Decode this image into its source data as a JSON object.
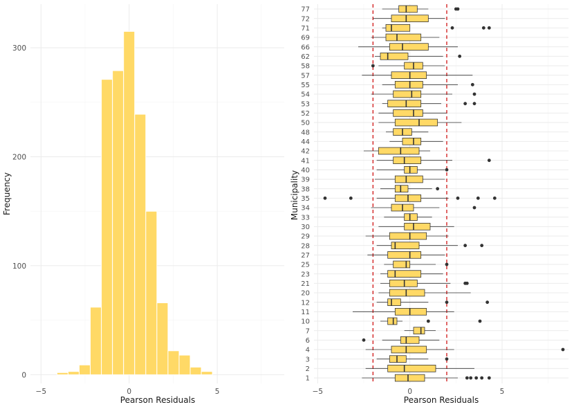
{
  "chart_data": [
    {
      "type": "bar",
      "subtype": "histogram",
      "xlabel": "Pearson Residuals",
      "ylabel": "Frequency",
      "xlim": [
        -5.6,
        8.8
      ],
      "ylim": [
        -8,
        340
      ],
      "x_ticks": [
        -5,
        0,
        5
      ],
      "y_ticks": [
        0,
        100,
        200,
        300
      ],
      "bin_width": 0.63,
      "bins": [
        {
          "x": -4.41,
          "count": 0
        },
        {
          "x": -3.78,
          "count": 2
        },
        {
          "x": -3.15,
          "count": 3
        },
        {
          "x": -2.52,
          "count": 9
        },
        {
          "x": -1.89,
          "count": 62
        },
        {
          "x": -1.26,
          "count": 271
        },
        {
          "x": -0.63,
          "count": 279
        },
        {
          "x": 0.0,
          "count": 315
        },
        {
          "x": 0.63,
          "count": 239
        },
        {
          "x": 1.26,
          "count": 150
        },
        {
          "x": 1.89,
          "count": 66
        },
        {
          "x": 2.52,
          "count": 22
        },
        {
          "x": 3.15,
          "count": 18
        },
        {
          "x": 3.78,
          "count": 7
        },
        {
          "x": 4.41,
          "count": 3
        }
      ],
      "grid": true
    },
    {
      "type": "box",
      "xlabel": "Pearson Residuals",
      "ylabel": "Municipality",
      "xlim": [
        -5.2,
        8.6
      ],
      "x_ticks": [
        -5,
        0,
        5
      ],
      "reference_lines": [
        -2,
        2
      ],
      "grid": true,
      "categories": [
        "1",
        "2",
        "3",
        "4",
        "6",
        "7",
        "10",
        "11",
        "12",
        "20",
        "21",
        "23",
        "25",
        "27",
        "28",
        "29",
        "30",
        "33",
        "34",
        "35",
        "38",
        "39",
        "40",
        "41",
        "42",
        "44",
        "48",
        "50",
        "52",
        "53",
        "54",
        "55",
        "57",
        "58",
        "62",
        "66",
        "69",
        "71",
        "72",
        "77"
      ],
      "boxes": [
        {
          "min": -2.6,
          "q1": -0.8,
          "median": -0.1,
          "q3": 0.8,
          "max": 2.6,
          "outliers": [
            3.1,
            3.3,
            3.6,
            3.9,
            4.3
          ]
        },
        {
          "min": -2.4,
          "q1": -1.2,
          "median": -0.3,
          "q3": 1.4,
          "max": 3.5,
          "outliers": []
        },
        {
          "min": -1.8,
          "q1": -1.1,
          "median": -0.7,
          "q3": -0.2,
          "max": 1.0,
          "outliers": [
            2.0
          ]
        },
        {
          "min": -2.4,
          "q1": -1.0,
          "median": -0.2,
          "q3": 0.9,
          "max": 2.4,
          "outliers": [
            8.3
          ]
        },
        {
          "min": -1.5,
          "q1": -0.5,
          "median": -0.2,
          "q3": 0.5,
          "max": 1.6,
          "outliers": [
            -2.5
          ]
        },
        {
          "min": -0.3,
          "q1": 0.2,
          "median": 0.6,
          "q3": 0.8,
          "max": 1.4,
          "outliers": []
        },
        {
          "min": -1.6,
          "q1": -1.2,
          "median": -0.9,
          "q3": -0.7,
          "max": -0.4,
          "outliers": [
            1.0,
            3.8
          ]
        },
        {
          "min": -3.1,
          "q1": -0.8,
          "median": 0.0,
          "q3": 0.9,
          "max": 2.4,
          "outliers": []
        },
        {
          "min": -1.8,
          "q1": -1.2,
          "median": -1.0,
          "q3": -0.5,
          "max": 1.0,
          "outliers": [
            2.0,
            4.2
          ]
        },
        {
          "min": -1.7,
          "q1": -1.1,
          "median": -0.2,
          "q3": 0.8,
          "max": 3.3,
          "outliers": []
        },
        {
          "min": -1.6,
          "q1": -1.1,
          "median": -0.3,
          "q3": 0.4,
          "max": 2.2,
          "outliers": [
            3.0,
            3.1
          ]
        },
        {
          "min": -1.6,
          "q1": -1.2,
          "median": -0.8,
          "q3": 0.6,
          "max": 1.8,
          "outliers": []
        },
        {
          "min": -1.4,
          "q1": -0.9,
          "median": -0.2,
          "q3": 0.0,
          "max": 1.4,
          "outliers": [
            2.0
          ]
        },
        {
          "min": -2.3,
          "q1": -1.2,
          "median": 0.0,
          "q3": 0.6,
          "max": 1.9,
          "outliers": []
        },
        {
          "min": -1.8,
          "q1": -1.0,
          "median": -0.8,
          "q3": 0.5,
          "max": 2.6,
          "outliers": [
            3.0,
            3.9
          ]
        },
        {
          "min": -2.4,
          "q1": -1.1,
          "median": 0.0,
          "q3": 0.9,
          "max": 2.1,
          "outliers": []
        },
        {
          "min": -1.7,
          "q1": -0.3,
          "median": 0.2,
          "q3": 1.1,
          "max": 2.4,
          "outliers": []
        },
        {
          "min": -1.4,
          "q1": -0.3,
          "median": 0.0,
          "q3": 0.4,
          "max": 1.2,
          "outliers": []
        },
        {
          "min": -2.1,
          "q1": -1.0,
          "median": -0.4,
          "q3": 0.2,
          "max": 1.6,
          "outliers": [
            3.5
          ]
        },
        {
          "min": -1.8,
          "q1": -0.8,
          "median": -0.1,
          "q3": 0.6,
          "max": 2.1,
          "outliers": [
            -4.6,
            -3.2,
            2.6,
            3.7,
            4.6
          ]
        },
        {
          "min": -1.6,
          "q1": -0.8,
          "median": -0.5,
          "q3": -0.1,
          "max": 1.2,
          "outliers": [
            1.5
          ]
        },
        {
          "min": -1.9,
          "q1": -0.8,
          "median": -0.2,
          "q3": 0.7,
          "max": 1.9,
          "outliers": []
        },
        {
          "min": -1.8,
          "q1": -0.3,
          "median": 0.0,
          "q3": 0.4,
          "max": 1.9,
          "outliers": [
            2.0
          ]
        },
        {
          "min": -1.8,
          "q1": -0.9,
          "median": -0.3,
          "q3": 0.6,
          "max": 2.3,
          "outliers": [
            4.3
          ]
        },
        {
          "min": -2.5,
          "q1": -1.7,
          "median": -0.5,
          "q3": 0.5,
          "max": 1.1,
          "outliers": []
        },
        {
          "min": -1.1,
          "q1": -0.4,
          "median": 0.2,
          "q3": 0.6,
          "max": 1.8,
          "outliers": []
        },
        {
          "min": -1.3,
          "q1": -0.9,
          "median": -0.4,
          "q3": 0.1,
          "max": 1.0,
          "outliers": []
        },
        {
          "min": -1.7,
          "q1": -0.8,
          "median": 0.5,
          "q3": 1.5,
          "max": 2.8,
          "outliers": []
        },
        {
          "min": -1.7,
          "q1": -0.9,
          "median": 0.2,
          "q3": 0.7,
          "max": 2.0,
          "outliers": []
        },
        {
          "min": -1.5,
          "q1": -1.2,
          "median": -0.2,
          "q3": 0.6,
          "max": 1.7,
          "outliers": [
            3.0,
            3.5
          ]
        },
        {
          "min": -2.1,
          "q1": -0.9,
          "median": 0.1,
          "q3": 0.6,
          "max": 2.3,
          "outliers": [
            3.5
          ]
        },
        {
          "min": -1.5,
          "q1": -0.8,
          "median": 0.0,
          "q3": 0.7,
          "max": 2.6,
          "outliers": [
            3.4
          ]
        },
        {
          "min": -2.6,
          "q1": -1.0,
          "median": 0.0,
          "q3": 0.9,
          "max": 3.4,
          "outliers": []
        },
        {
          "min": -1.7,
          "q1": -0.3,
          "median": 0.2,
          "q3": 0.7,
          "max": 1.9,
          "outliers": [
            -2.0
          ]
        },
        {
          "min": -1.9,
          "q1": -1.6,
          "median": -1.2,
          "q3": -0.1,
          "max": 1.8,
          "outliers": [
            2.7
          ]
        },
        {
          "min": -2.8,
          "q1": -1.1,
          "median": -0.4,
          "q3": 1.0,
          "max": 2.6,
          "outliers": []
        },
        {
          "min": -2.1,
          "q1": -1.3,
          "median": -0.7,
          "q3": 0.6,
          "max": 1.6,
          "outliers": []
        },
        {
          "min": -1.5,
          "q1": -1.3,
          "median": -1.0,
          "q3": 0.0,
          "max": 0.0,
          "outliers": [
            2.3,
            4.0,
            4.3
          ]
        },
        {
          "min": -2.0,
          "q1": -1.0,
          "median": -0.2,
          "q3": 1.0,
          "max": 1.9,
          "outliers": []
        },
        {
          "min": -1.5,
          "q1": -0.6,
          "median": -0.2,
          "q3": 0.4,
          "max": 1.0,
          "outliers": [
            2.5,
            2.6
          ]
        }
      ]
    }
  ]
}
